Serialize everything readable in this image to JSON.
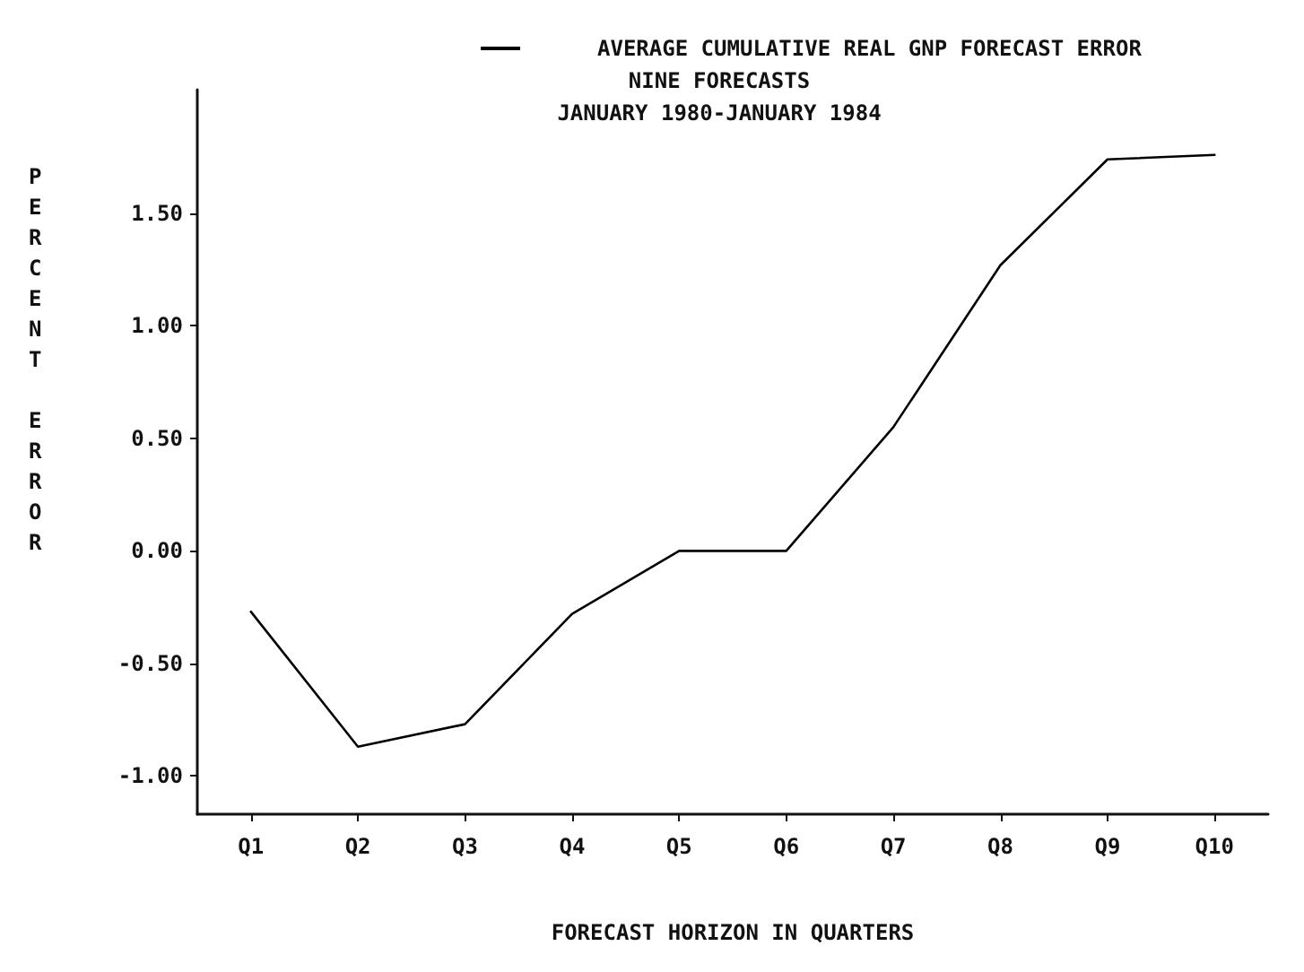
{
  "chart_data": {
    "type": "line",
    "title": "NINE FORECASTS",
    "subtitle": "JANUARY 1980-JANUARY 1984",
    "xlabel": "FORECAST HORIZON IN QUARTERS",
    "ylabel": "PERCENT ERROR",
    "categories": [
      "Q1",
      "Q2",
      "Q3",
      "Q4",
      "Q5",
      "Q6",
      "Q7",
      "Q8",
      "Q9",
      "Q10"
    ],
    "series": [
      {
        "name": "AVERAGE CUMULATIVE REAL GNP FORECAST ERROR",
        "color": "#000000",
        "values": [
          -0.27,
          -0.87,
          -0.77,
          -0.28,
          0.0,
          0.0,
          0.55,
          1.27,
          1.74,
          1.76
        ]
      }
    ],
    "ylim": [
      -1.17,
      2.05
    ],
    "yticks": [
      {
        "value": -1,
        "label": "-1.00"
      },
      {
        "value": -0.5,
        "label": "-0.50"
      },
      {
        "value": 0,
        "label": "0.00"
      },
      {
        "value": 0.5,
        "label": "0.50"
      },
      {
        "value": 1,
        "label": "1.00"
      },
      {
        "value": 1.5,
        "label": "1.50"
      }
    ],
    "legend": "top",
    "grid": false,
    "marker": "none",
    "line_style": "solid"
  }
}
